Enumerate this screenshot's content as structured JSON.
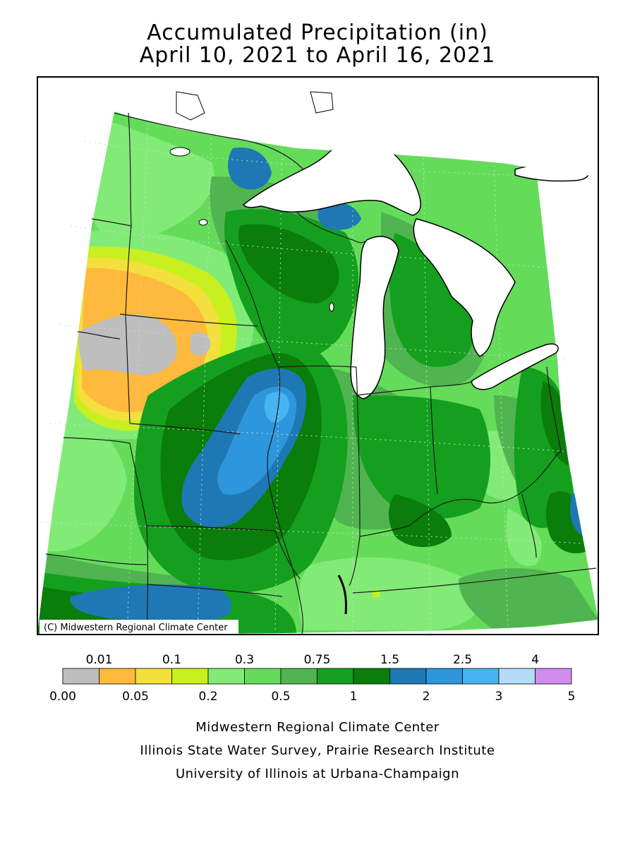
{
  "title": {
    "line1": "Accumulated Precipitation (in)",
    "line2": "April 10, 2021 to April 16, 2021"
  },
  "map": {
    "copyright": "(C) Midwestern Regional Climate Center",
    "region": "Midwest United States",
    "colors": {
      "water": "#ffffff",
      "border": "#000000",
      "grid": "#cfd8cf"
    }
  },
  "legend": {
    "upper_labels": [
      "0.01",
      "0.1",
      "0.3",
      "0.75",
      "1.5",
      "2.5",
      "4"
    ],
    "lower_labels": [
      "0.00",
      "0.05",
      "0.2",
      "0.5",
      "1",
      "2",
      "3",
      "5"
    ],
    "bins": [
      {
        "range": "0.00-0.01",
        "color": "#bebebe"
      },
      {
        "range": "0.01-0.05",
        "color": "#ffb93c"
      },
      {
        "range": "0.05-0.1",
        "color": "#f3e03c"
      },
      {
        "range": "0.1-0.2",
        "color": "#c8f01e"
      },
      {
        "range": "0.2-0.3",
        "color": "#82eb78"
      },
      {
        "range": "0.3-0.5",
        "color": "#64dc5a"
      },
      {
        "range": "0.5-0.75",
        "color": "#50b450"
      },
      {
        "range": "0.75-1",
        "color": "#14a01e"
      },
      {
        "range": "1-1.5",
        "color": "#0a7d0a"
      },
      {
        "range": "1.5-2",
        "color": "#1e78b4"
      },
      {
        "range": "2-2.5",
        "color": "#2d96dc"
      },
      {
        "range": "2.5-3",
        "color": "#46b4f0"
      },
      {
        "range": "3-4",
        "color": "#b4dcf8"
      },
      {
        "range": "4-5",
        "color": "#d28cf0"
      }
    ]
  },
  "footer": {
    "line1": "Midwestern Regional Climate Center",
    "line2": "Illinois State Water Survey, Prairie Research Institute",
    "line3": "University of Illinois at Urbana-Champaign"
  }
}
